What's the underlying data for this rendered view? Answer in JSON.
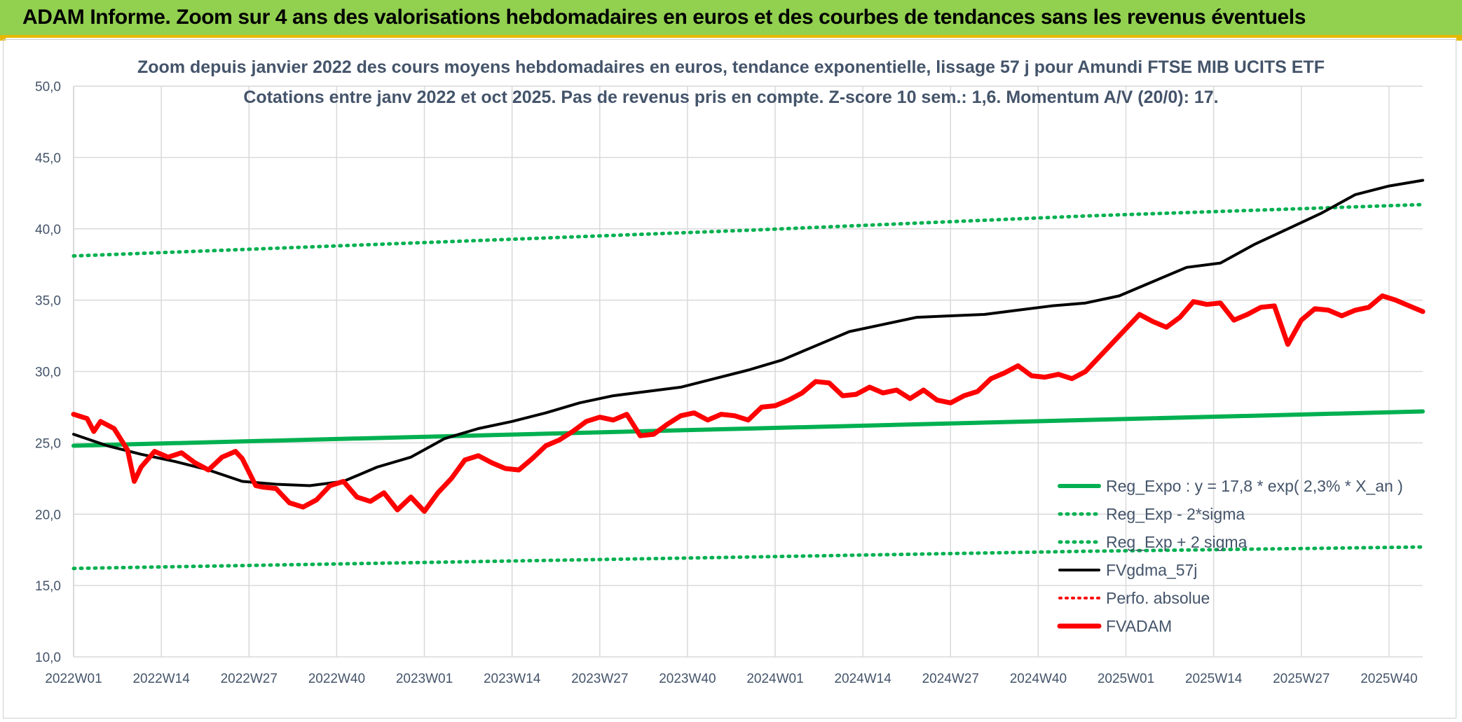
{
  "header": {
    "title": "ADAM Informe. Zoom sur 4 ans des valorisations hebdomadaires en euros et des courbes de tendances sans les revenus éventuels"
  },
  "colors": {
    "banner": "#92d050",
    "accent": "#e6b800",
    "trend": "#00b050",
    "avg": "#000000",
    "price": "#ff0000",
    "grid": "#d9d9d9",
    "text": "#44546a"
  },
  "chart_data": {
    "type": "line",
    "title": "Zoom depuis janvier 2022 des cours moyens hebdomadaires en euros, tendance exponentielle, lissage 57 j pour Amundi FTSE MIB UCITS ETF",
    "subtitle": "Cotations entre janv 2022 et oct 2025. Pas de revenus pris en compte. Z-score 10 sem.: 1,6. Momentum A/V (20/0): 17.",
    "xlabel": "",
    "ylabel": "",
    "ylim": [
      10,
      50
    ],
    "yticks": [
      "10,0",
      "15,0",
      "20,0",
      "25,0",
      "30,0",
      "35,0",
      "40,0",
      "45,0",
      "50,0"
    ],
    "x_tick_labels": [
      "2022W01",
      "2022W14",
      "2022W27",
      "2022W40",
      "2023W01",
      "2023W14",
      "2023W27",
      "2023W40",
      "2024W01",
      "2024W14",
      "2024W27",
      "2024W40",
      "2025W01",
      "2025W14",
      "2025W27",
      "2025W40"
    ],
    "x_tick_weeks": [
      0,
      13,
      26,
      39,
      52,
      65,
      78,
      91,
      104,
      117,
      130,
      143,
      156,
      169,
      182,
      195
    ],
    "n_weeks": 201,
    "grid": true,
    "legend_position": "bottom-right",
    "series": [
      {
        "name": "Reg_Expo : y = 17,8 * exp( 2,3% *  X_an )",
        "style": "solid-green",
        "x": [
          0,
          50,
          100,
          150,
          200
        ],
        "y": [
          24.8,
          25.4,
          26.0,
          26.6,
          27.2
        ]
      },
      {
        "name": "Reg_Exp - 2*sigma",
        "style": "dotted-green",
        "x": [
          0,
          50,
          100,
          150,
          200
        ],
        "y": [
          16.2,
          16.6,
          17.0,
          17.4,
          17.7
        ]
      },
      {
        "name": "Reg_Exp + 2 sigma",
        "style": "dotted-green",
        "x": [
          0,
          50,
          100,
          150,
          200
        ],
        "y": [
          38.1,
          39.0,
          39.9,
          40.9,
          41.7
        ]
      },
      {
        "name": "FVgdma_57j",
        "style": "solid-black",
        "x": [
          0,
          5,
          10,
          15,
          20,
          25,
          30,
          35,
          40,
          45,
          50,
          55,
          60,
          65,
          70,
          75,
          80,
          85,
          90,
          95,
          100,
          105,
          110,
          115,
          120,
          125,
          130,
          135,
          140,
          145,
          150,
          155,
          160,
          165,
          170,
          175,
          180,
          185,
          190,
          195,
          200
        ],
        "y": [
          25.6,
          24.8,
          24.2,
          23.7,
          23.1,
          22.3,
          22.1,
          22.0,
          22.3,
          23.3,
          24.0,
          25.3,
          26.0,
          26.5,
          27.1,
          27.8,
          28.3,
          28.6,
          28.9,
          29.5,
          30.1,
          30.8,
          31.8,
          32.8,
          33.3,
          33.8,
          33.9,
          34.0,
          34.3,
          34.6,
          34.8,
          35.3,
          36.3,
          37.3,
          37.6,
          38.9,
          40.0,
          41.1,
          42.4,
          43.0,
          43.4
        ]
      },
      {
        "name": "Perfo. absolue",
        "style": "dotted-red",
        "x": [],
        "y": []
      },
      {
        "name": "FVADAM",
        "style": "solid-red-thick",
        "x": [
          0,
          2,
          3,
          4,
          6,
          8,
          9,
          10,
          12,
          14,
          16,
          18,
          20,
          22,
          24,
          25,
          27,
          28,
          30,
          32,
          34,
          36,
          38,
          40,
          42,
          44,
          46,
          48,
          50,
          52,
          54,
          56,
          58,
          60,
          62,
          64,
          66,
          68,
          70,
          72,
          74,
          76,
          78,
          80,
          82,
          84,
          86,
          88,
          90,
          92,
          94,
          96,
          98,
          100,
          102,
          104,
          106,
          108,
          110,
          112,
          114,
          116,
          118,
          120,
          122,
          124,
          126,
          128,
          130,
          132,
          134,
          136,
          138,
          140,
          142,
          144,
          146,
          148,
          150,
          152,
          154,
          156,
          158,
          160,
          162,
          164,
          166,
          168,
          170,
          172,
          174,
          176,
          178,
          180,
          182,
          184,
          186,
          188,
          190,
          192,
          194,
          196,
          198,
          200
        ],
        "y": [
          27.0,
          26.7,
          25.8,
          26.5,
          26.0,
          24.5,
          22.3,
          23.3,
          24.4,
          24.0,
          24.3,
          23.6,
          23.1,
          24.0,
          24.4,
          23.9,
          22.0,
          21.9,
          21.8,
          20.8,
          20.5,
          21.0,
          22.0,
          22.3,
          21.2,
          20.9,
          21.5,
          20.3,
          21.2,
          20.2,
          21.5,
          22.5,
          23.8,
          24.1,
          23.6,
          23.2,
          23.1,
          23.9,
          24.8,
          25.2,
          25.8,
          26.5,
          26.8,
          26.6,
          27.0,
          25.5,
          25.6,
          26.3,
          26.9,
          27.1,
          26.6,
          27.0,
          26.9,
          26.6,
          27.5,
          27.6,
          28.0,
          28.5,
          29.3,
          29.2,
          28.3,
          28.4,
          28.9,
          28.5,
          28.7,
          28.1,
          28.7,
          28.0,
          27.8,
          28.3,
          28.6,
          29.5,
          29.9,
          30.4,
          29.7,
          29.6,
          29.8,
          29.5,
          30.0,
          31.0,
          32.0,
          33.0,
          34.0,
          33.5,
          33.1,
          33.8,
          34.9,
          34.7,
          34.8,
          33.6,
          34.0,
          34.5,
          34.6,
          31.9,
          33.6,
          34.4,
          34.3,
          33.9,
          34.3,
          34.5,
          35.3,
          35.0,
          34.6,
          34.2
        ]
      }
    ]
  },
  "legend": [
    {
      "label": "Reg_Expo : y = 17,8 * exp( 2,3% *  X_an )",
      "style": "solid-green"
    },
    {
      "label": "Reg_Exp - 2*sigma",
      "style": "dotted-green"
    },
    {
      "label": "Reg_Exp + 2 sigma",
      "style": "dotted-green"
    },
    {
      "label": "FVgdma_57j",
      "style": "solid-black"
    },
    {
      "label": "Perfo. absolue",
      "style": "dotted-red"
    },
    {
      "label": "FVADAM",
      "style": "solid-red-thick"
    }
  ]
}
